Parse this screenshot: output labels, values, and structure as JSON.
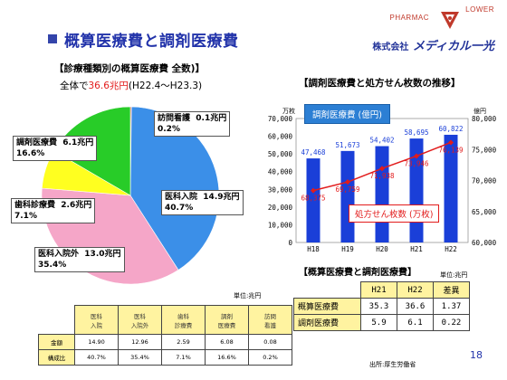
{
  "header": {
    "title": "概算医療費と調剤医療費",
    "logo_text_a": "PHARMAC",
    "logo_text_b": "LOWER",
    "company_prefix": "株式会社",
    "company_name": "メディカル一光"
  },
  "pie": {
    "heading": "【診療種類別の概算医療費 全数)】",
    "total_prefix": "全体で",
    "total_value": "36.6兆円",
    "total_period": "(H22.4～H23.3)",
    "colors": {
      "visit_nursing": "#ff2020",
      "inpatient": "#3b8fe8",
      "outpatient": "#f5a6c8",
      "dental": "#ffff20",
      "dispensing": "#28cc28"
    }
  },
  "pie_labels": {
    "visit_nursing_name": "訪問看護",
    "visit_nursing_value": "0.1兆円",
    "visit_nursing_pct": "0.2%",
    "inpatient_name": "医科入院",
    "inpatient_value": "14.9兆円",
    "inpatient_pct": "40.7%",
    "outpatient_name": "医科入院外",
    "outpatient_value": "13.0兆円",
    "outpatient_pct": "35.4%",
    "dental_name": "歯科診療費",
    "dental_value": "2.6兆円",
    "dental_pct": "7.1%",
    "dispensing_name": "調剤医療費",
    "dispensing_value": "6.1兆円",
    "dispensing_pct": "16.6%"
  },
  "bar": {
    "heading": "【調剤医療費と処方せん枚数の推移】",
    "left_unit": "万枚",
    "right_unit": "億円",
    "callout_cost": "調剤医療費 (億円)",
    "callout_rx": "処方せん枚数 (万枚)",
    "bar_color": "#1a3fd8",
    "line_color": "#e21b1b"
  },
  "chart_data": {
    "type": "bar",
    "categories": [
      "H18",
      "H19",
      "H20",
      "H21",
      "H22"
    ],
    "series": [
      {
        "name": "処方せん枚数 (万枚)",
        "type": "bar",
        "axis": "left",
        "values": [
          47468,
          51673,
          54402,
          58695,
          60822
        ]
      },
      {
        "name": "調剤医療費 (億円)",
        "type": "line",
        "axis": "right",
        "values": [
          68375,
          69759,
          71938,
          73946,
          76139
        ]
      }
    ],
    "bar_labels": [
      "47,468",
      "51,673",
      "54,402",
      "58,695",
      "60,822"
    ],
    "line_labels": [
      "68,375",
      "69,759",
      "71,938",
      "73,946",
      "76,139"
    ],
    "left_ylim": [
      0,
      70000
    ],
    "right_ylim": [
      60000,
      80000
    ],
    "left_ticks": [
      "70,000",
      "60,000",
      "50,000",
      "40,000",
      "30,000",
      "20,000",
      "10,000",
      "0"
    ],
    "right_ticks": [
      "80,000",
      "75,000",
      "70,000",
      "65,000",
      "60,000"
    ],
    "x_ticks": [
      "H18",
      "H19",
      "H20",
      "H21",
      "H22"
    ]
  },
  "table2": {
    "heading": "【概算医療費と調剤医療費】",
    "unit": "単位:兆円",
    "col_h21": "H21",
    "col_h22": "H22",
    "col_diff": "差異",
    "row1_label": "概算医療費",
    "row1_h21": "35.3",
    "row1_h22": "36.6",
    "row1_diff": "1.37",
    "row2_label": "調剤医療費",
    "row2_h21": "5.9",
    "row2_h22": "6.1",
    "row2_diff": "0.22"
  },
  "table1": {
    "unit": "単位:兆円",
    "hdr1": "医科\n入院",
    "hdr2": "医科\n入院外",
    "hdr3": "歯科\n診療費",
    "hdr4": "調剤\n医療費",
    "hdr5": "訪問\n看護",
    "row_amount": "金額",
    "row_ratio": "構成比",
    "amount1": "14.90",
    "amount2": "12.96",
    "amount3": "2.59",
    "amount4": "6.08",
    "amount5": "0.08",
    "ratio1": "40.7%",
    "ratio2": "35.4%",
    "ratio3": "7.1%",
    "ratio4": "16.6%",
    "ratio5": "0.2%"
  },
  "footer": {
    "page_number": "18",
    "source": "出所:厚生労働省"
  }
}
